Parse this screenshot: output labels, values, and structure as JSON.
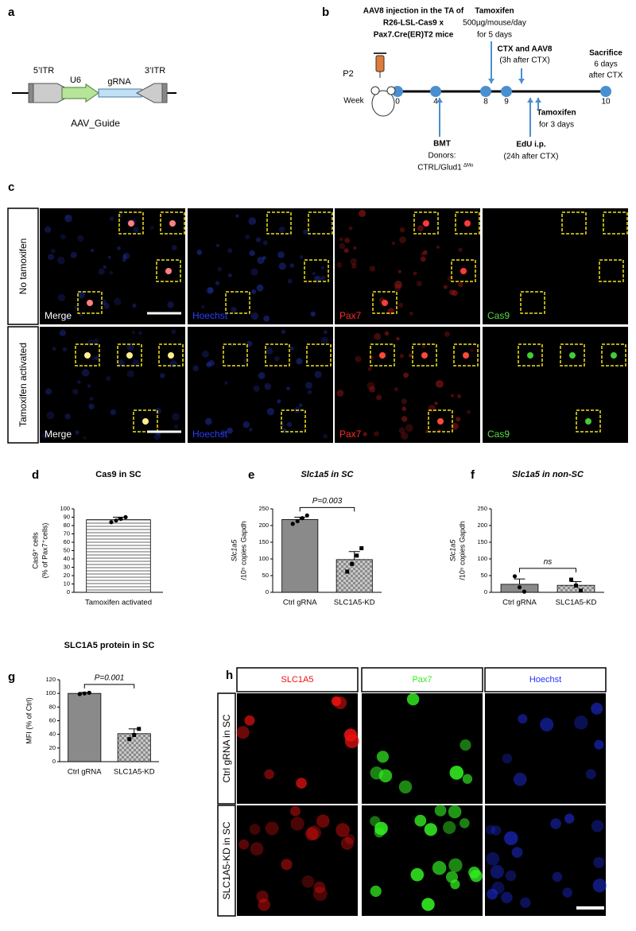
{
  "panel_labels": [
    "a",
    "b",
    "c",
    "d",
    "e",
    "f",
    "g",
    "h"
  ],
  "panel_a": {
    "labels": [
      "5’ITR",
      "U6",
      "gRNA",
      "3’ITR"
    ],
    "caption": "AAV_Guide"
  },
  "panel_b": {
    "header": [
      "AAV8 injection in the TA of",
      "R26-LSL-Cas9 x",
      "Pax7.Cre(ER)T2 mice"
    ],
    "tamoxifen_top": [
      "Tamoxifen",
      "500µg/mouse/day",
      "for 5 days"
    ],
    "ctx": [
      "CTX and AAV8",
      "(3h after CTX)"
    ],
    "sacrifice": [
      "Sacrifice",
      "6 days",
      "after CTX"
    ],
    "p2": "P2",
    "week": "Week",
    "weeks": [
      0,
      4,
      8,
      9,
      10
    ],
    "bmt": [
      "BMT",
      "Donors:"
    ],
    "bmt_donor": "CTRL/Glud1",
    "bmt_donor_sup": "ΔMo",
    "tamoxifen_bottom": [
      "Tamoxifen",
      "for 3 days"
    ],
    "edu": [
      "EdU i.p.",
      "(24h after CTX)"
    ]
  },
  "panel_c": {
    "row_labels": [
      "No tamoxifen",
      "Tamoxifen activated"
    ],
    "channels": [
      "Merge",
      "Hoechst",
      "Pax7",
      "Cas9"
    ]
  },
  "panel_h": {
    "channels": [
      "SLC1A5",
      "Pax7",
      "Hoechst"
    ],
    "row_labels": [
      "Ctrl gRNA in SC",
      "SLC1A5-KD in SC"
    ]
  },
  "chart_data": [
    {
      "type": "bar",
      "title": "Cas9 in SC",
      "ylabel": [
        "Cas9⁺ cells",
        "(% of Pax7⁺cells)"
      ],
      "categories": [
        "Tamoxifen activated"
      ],
      "values": [
        87
      ],
      "errors": [
        3
      ],
      "points": [
        [
          84,
          86,
          88,
          90
        ]
      ],
      "fills": [
        "striped"
      ],
      "markers": [
        "circle"
      ],
      "ylim": [
        0,
        100
      ],
      "yticks": [
        0,
        10,
        20,
        30,
        40,
        50,
        60,
        70,
        80,
        90,
        100
      ]
    },
    {
      "type": "bar",
      "title": "Slc1a5 in SC",
      "ylabel": [
        "Slc1a5",
        "/10⁵ copies Gapdh"
      ],
      "categories": [
        "Ctrl gRNA",
        "SLC1A5-KD"
      ],
      "values": [
        218,
        98
      ],
      "errors": [
        7,
        24
      ],
      "points": [
        [
          205,
          213,
          222,
          230
        ],
        [
          62,
          85,
          110,
          132
        ]
      ],
      "fills": [
        "#8a8a8a",
        "checkered"
      ],
      "markers": [
        "circle",
        "square"
      ],
      "annotation": "P=0.003",
      "ylim": [
        0,
        250
      ],
      "yticks": [
        0,
        50,
        100,
        150,
        200,
        250
      ]
    },
    {
      "type": "bar",
      "title": "Slc1a5 in non-SC",
      "ylabel": [
        "Slc1a5",
        "/10⁵ copies Gapdh"
      ],
      "categories": [
        "Ctrl gRNA",
        "SLC1A5-KD"
      ],
      "values": [
        24,
        21
      ],
      "errors": [
        16,
        11
      ],
      "points": [
        [
          48,
          15,
          2
        ],
        [
          38,
          20,
          5
        ]
      ],
      "fills": [
        "#8a8a8a",
        "checkered"
      ],
      "markers": [
        "circle",
        "square"
      ],
      "annotation": "ns",
      "ylim": [
        0,
        250
      ],
      "yticks": [
        0,
        50,
        100,
        150,
        200,
        250
      ]
    },
    {
      "type": "bar",
      "title": "SLC1A5 protein in SC",
      "ylabel": [
        "MFI (% of Ctrl)"
      ],
      "categories": [
        "Ctrl gRNA",
        "SLC1A5-KD"
      ],
      "values": [
        100,
        41
      ],
      "errors": [
        1.5,
        7
      ],
      "points": [
        [
          99,
          100,
          101
        ],
        [
          33,
          39,
          48
        ]
      ],
      "fills": [
        "#8a8a8a",
        "checkered"
      ],
      "markers": [
        "circle",
        "square"
      ],
      "annotation": "P=0.001",
      "ylim": [
        0,
        120
      ],
      "yticks": [
        0,
        20,
        40,
        60,
        80,
        100,
        120
      ]
    }
  ]
}
